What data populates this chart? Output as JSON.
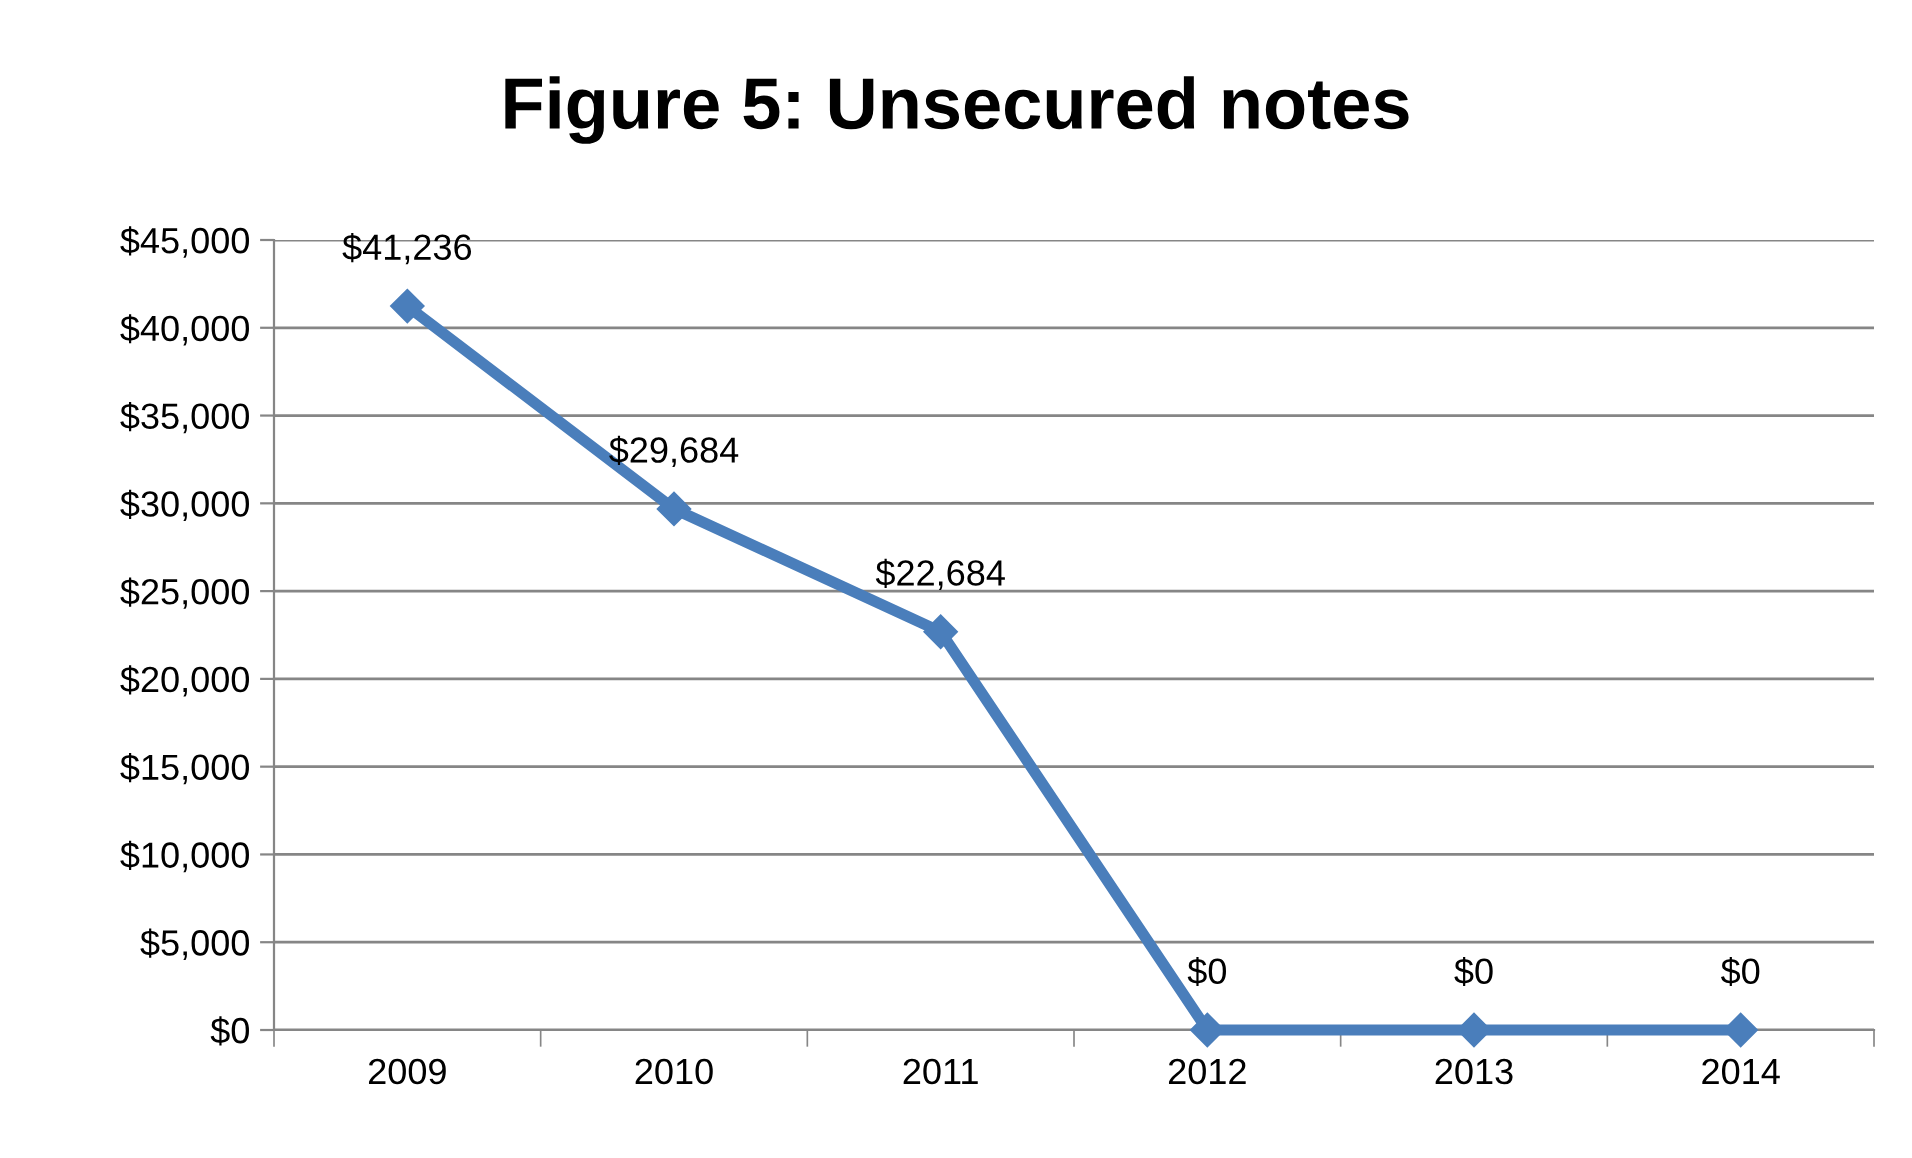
{
  "chart_data": {
    "type": "line",
    "title": "Figure 5: Unsecured notes",
    "categories": [
      "2009",
      "2010",
      "2011",
      "2012",
      "2013",
      "2014"
    ],
    "values": [
      41236,
      29684,
      22684,
      0,
      0,
      0
    ],
    "value_labels": [
      "$41,236",
      "$29,684",
      "$22,684",
      "$0",
      "$0",
      "$0"
    ],
    "color": "#4a7ebb",
    "marker": "diamond",
    "line_style": "solid",
    "ylim": [
      0,
      45000
    ],
    "yticks": [
      {
        "value": 0,
        "label": "$0"
      },
      {
        "value": 5000,
        "label": "$5,000"
      },
      {
        "value": 10000,
        "label": "$10,000"
      },
      {
        "value": 15000,
        "label": "$15,000"
      },
      {
        "value": 20000,
        "label": "$20,000"
      },
      {
        "value": 25000,
        "label": "$25,000"
      },
      {
        "value": 30000,
        "label": "$30,000"
      },
      {
        "value": 35000,
        "label": "$35,000"
      },
      {
        "value": 40000,
        "label": "$40,000"
      },
      {
        "value": 45000,
        "label": "$45,000"
      }
    ],
    "grid": "y",
    "legend": false
  }
}
